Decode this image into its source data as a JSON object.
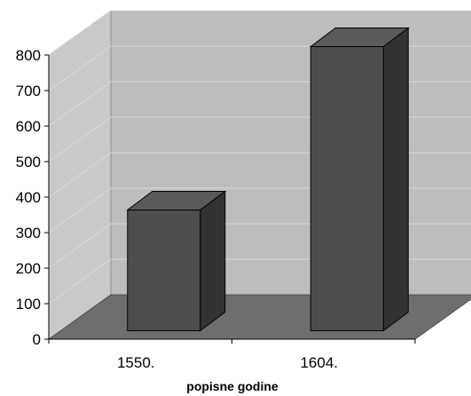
{
  "chart_data": {
    "type": "bar",
    "title": "",
    "xlabel": "popisne godine",
    "ylabel": "",
    "categories": [
      "1550.",
      "1604."
    ],
    "values": [
      340,
      800
    ],
    "ylim": [
      0,
      800
    ],
    "yticks": [
      0,
      100,
      200,
      300,
      400,
      500,
      600,
      700,
      800
    ],
    "grid": true,
    "legend": "none",
    "style": "3d",
    "colors": {
      "bar_front": "#4d4d4d",
      "bar_side": "#333333",
      "bar_top": "#5a5a5a",
      "back_wall": "#bdbdbd",
      "side_wall": "#c9c9c9",
      "floor": "#6e6e6e",
      "gridline": "#d9d9d9"
    }
  }
}
